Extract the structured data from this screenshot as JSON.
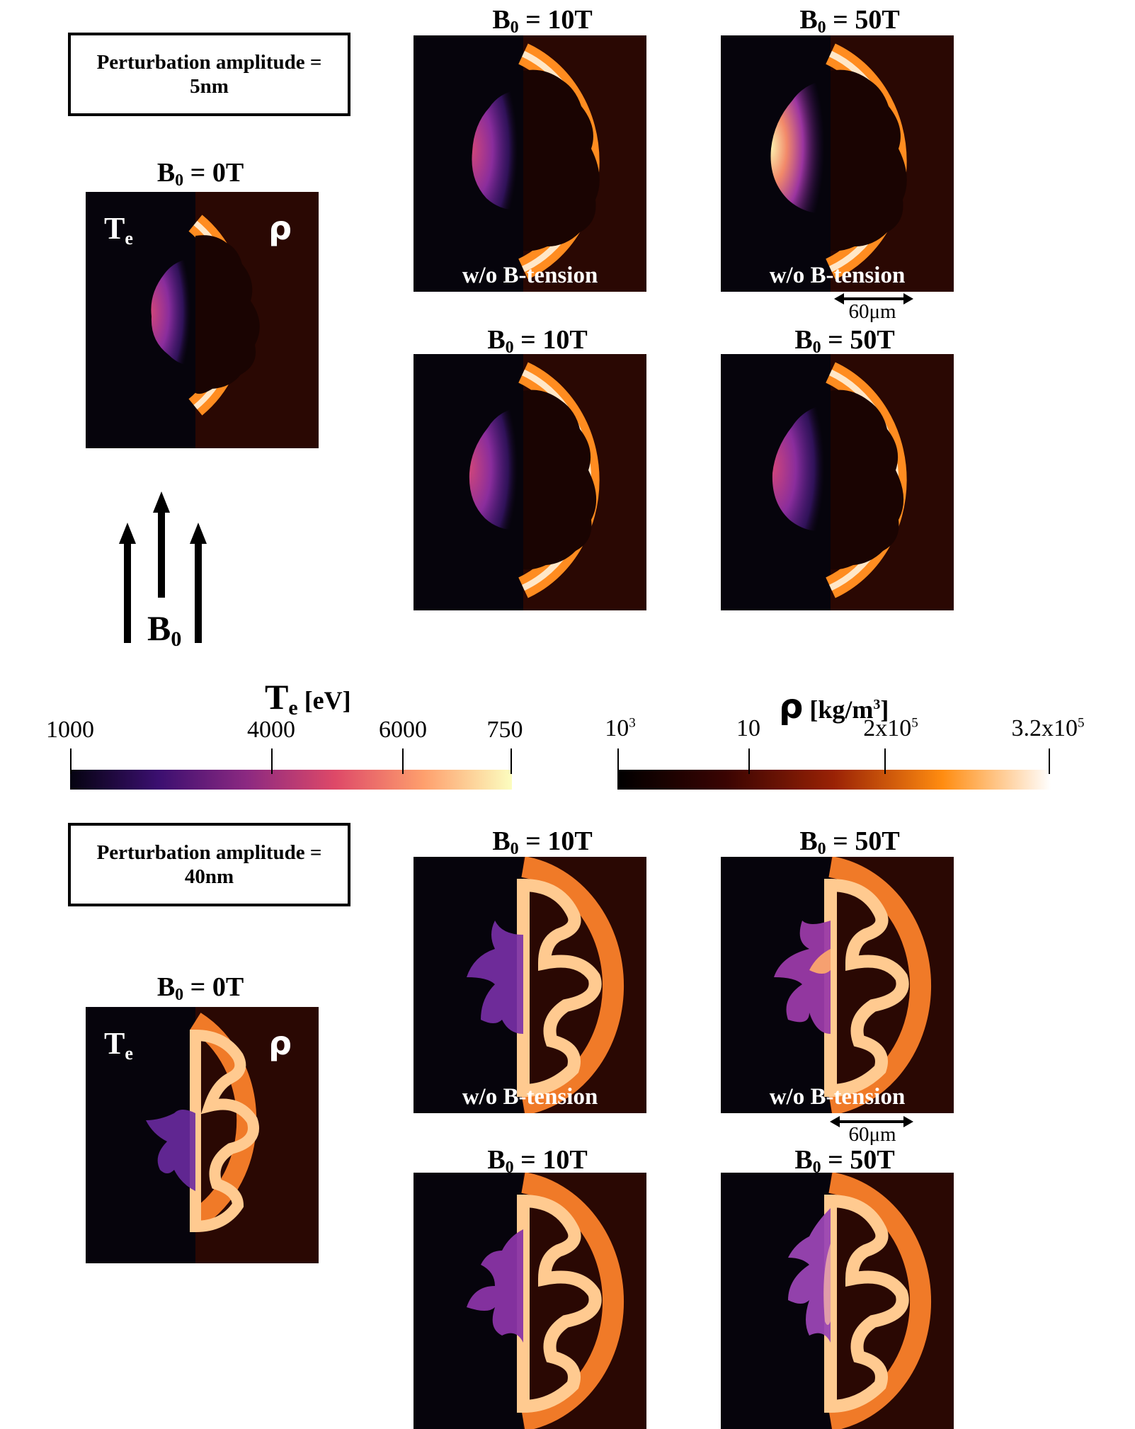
{
  "top": {
    "amplitude_label": [
      "Perturbation amplitude =",
      "5nm"
    ],
    "ref_panel": {
      "title": "B",
      "title_sub": "0",
      "title_rest": " = 0T",
      "te_label": "T",
      "te_sub": "e",
      "rho_label": "ρ"
    },
    "panels": [
      {
        "title": "B",
        "title_sub": "0",
        "title_rest": " = 10T",
        "caption": "w/o B-tension"
      },
      {
        "title": "B",
        "title_sub": "0",
        "title_rest": " = 50T",
        "caption": "w/o B-tension"
      },
      {
        "title": "B",
        "title_sub": "0",
        "title_rest": " = 10T",
        "caption": ""
      },
      {
        "title": "B",
        "title_sub": "0",
        "title_rest": " = 50T",
        "caption": ""
      }
    ],
    "scale_bar": "60μm"
  },
  "field_arrows": {
    "label": "B",
    "label_sub": "0"
  },
  "colorbar_te": {
    "title": "T",
    "title_sub": "e",
    "title_unit": " [eV]",
    "ticks": [
      "1000",
      "4000",
      "6000",
      "750"
    ],
    "colors": [
      "#050310",
      "#3b0f70",
      "#8c2981",
      "#de4968",
      "#fe9f6d",
      "#fcfdbf"
    ]
  },
  "colorbar_rho": {
    "title": "ρ",
    "title_unit": " [kg/m",
    "title_sup": "3",
    "title_end": "]",
    "ticks": [
      {
        "base": "10",
        "sup": "3"
      },
      {
        "base": "10",
        "sup": ""
      },
      {
        "base": "2x10",
        "sup": "5"
      },
      {
        "base": "3.2x10",
        "sup": "5"
      }
    ],
    "colors": [
      "#000000",
      "#3a0402",
      "#9a2205",
      "#ff8c10",
      "#ffffff"
    ]
  },
  "bottom": {
    "amplitude_label": [
      "Perturbation amplitude =",
      "40nm"
    ],
    "ref_panel": {
      "title": "B",
      "title_sub": "0",
      "title_rest": " = 0T",
      "te_label": "T",
      "te_sub": "e",
      "rho_label": "ρ"
    },
    "panels": [
      {
        "title": "B",
        "title_sub": "0",
        "title_rest": " = 10T",
        "caption": "w/o B-tension"
      },
      {
        "title": "B",
        "title_sub": "0",
        "title_rest": " = 50T",
        "caption": "w/o B-tension"
      },
      {
        "title": "B",
        "title_sub": "0",
        "title_rest": " = 10T",
        "caption": ""
      },
      {
        "title": "B",
        "title_sub": "0",
        "title_rest": " = 50T",
        "caption": ""
      }
    ],
    "scale_bar": "60μm"
  }
}
